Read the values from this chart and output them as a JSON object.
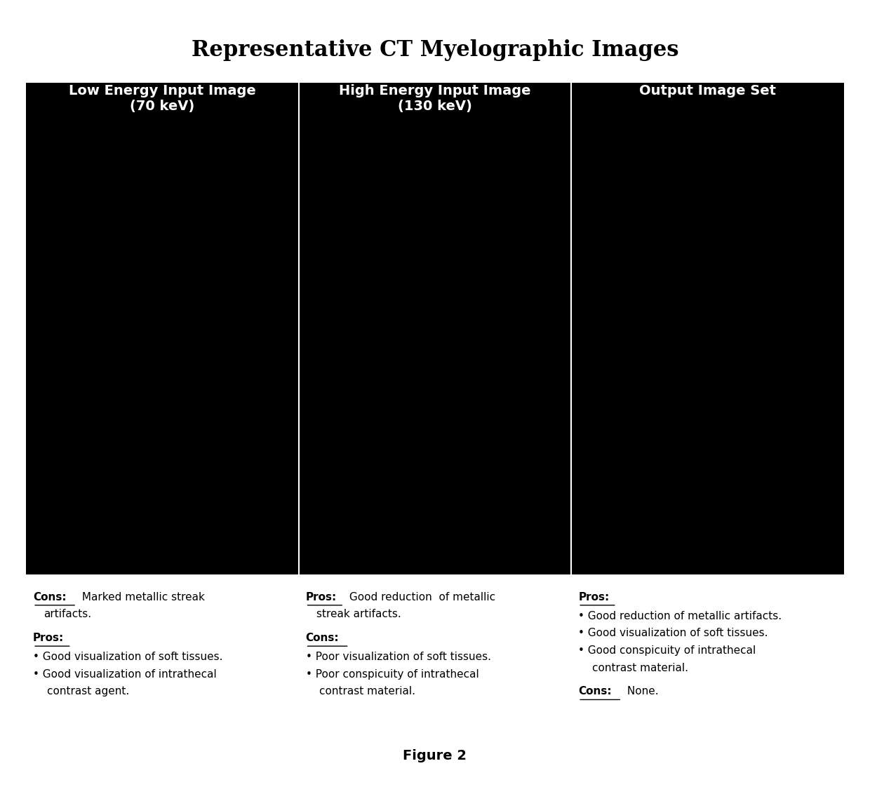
{
  "title": "Representative CT Myelographic Images",
  "title_fontsize": 22,
  "title_fontweight": "bold",
  "col_headers": [
    "Low Energy Input Image\n(70 keV)",
    "High Energy Input Image\n(130 keV)",
    "Output Image Set"
  ],
  "col_header_fontsize": 14,
  "col_header_color": "#ffffff",
  "col_header_bg": "#000000",
  "image_panel_bg": "#000000",
  "figure_bg": "#ffffff",
  "figure_label": "Figure 2",
  "figure_label_fontsize": 14,
  "figure_label_fontweight": "bold",
  "caption_fontsize": 11,
  "label_fontsize": 11
}
